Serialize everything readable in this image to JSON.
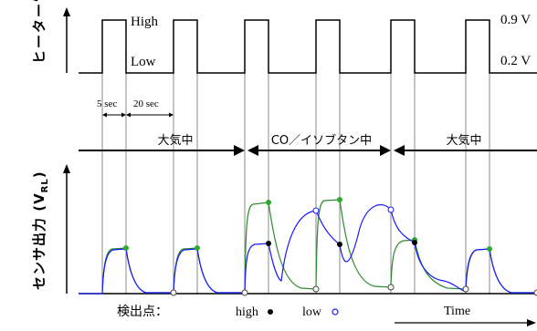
{
  "heater_axis_label": "ヒーター電圧",
  "sensor_axis_label": "センサ出力 (V",
  "sensor_axis_subscript": "RL",
  "sensor_axis_close": ")",
  "voltage_high_label": "High",
  "voltage_low_label": "Low",
  "voltage_high_value": "0.9 V",
  "voltage_low_value": "0.2 V",
  "pulse_width_label": "5 sec",
  "interval_label": "20 sec",
  "phases": [
    {
      "label": "大気中"
    },
    {
      "label": "CO／イソブタン中"
    },
    {
      "label": "大気中"
    }
  ],
  "detection_label": "検出点：",
  "high_marker_label": "high",
  "low_marker_label": "low",
  "time_label": "Time",
  "colors": {
    "line": "#000000",
    "gridline": "#888888",
    "co_curve": "#2e8b2e",
    "isobutane_curve": "#1a1aff",
    "high_marker": "#2fa82f"
  }
}
